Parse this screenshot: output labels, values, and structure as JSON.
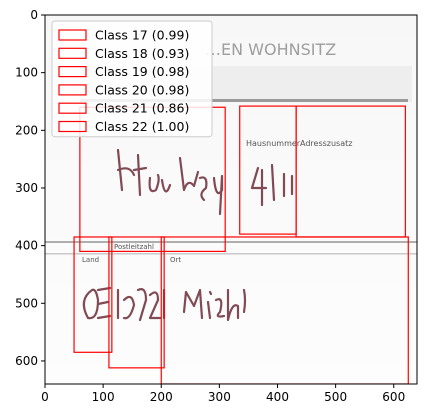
{
  "chart_data": {
    "type": "image-with-bounding-boxes",
    "title": "",
    "xlabel": "",
    "ylabel": "",
    "xlim": [
      0,
      640
    ],
    "ylim": [
      640,
      0
    ],
    "x_ticks": [
      0,
      100,
      200,
      300,
      400,
      500,
      600
    ],
    "y_ticks": [
      0,
      100,
      200,
      300,
      400,
      500,
      600
    ],
    "box_color": "#ff0000",
    "legend_position": "upper-left",
    "boxes": [
      {
        "label": "Class 17 (0.99)",
        "class": 17,
        "score": 0.99,
        "x0": 60,
        "y0": 160,
        "x1": 310,
        "y1": 410
      },
      {
        "label": "Class 18 (0.93)",
        "class": 18,
        "score": 0.93,
        "x0": 335,
        "y0": 158,
        "x1": 432,
        "y1": 380
      },
      {
        "label": "Class 19 (0.98)",
        "class": 19,
        "score": 0.98,
        "x0": 432,
        "y0": 158,
        "x1": 620,
        "y1": 385
      },
      {
        "label": "Class 20 (0.98)",
        "class": 20,
        "score": 0.98,
        "x0": 50,
        "y0": 385,
        "x1": 115,
        "y1": 585
      },
      {
        "label": "Class 21 (0.86)",
        "class": 21,
        "score": 0.86,
        "x0": 110,
        "y0": 385,
        "x1": 205,
        "y1": 612
      },
      {
        "label": "Class 22 (1.00)",
        "class": 22,
        "score": 1.0,
        "x0": 200,
        "y0": 385,
        "x1": 625,
        "y1": 640
      }
    ]
  },
  "image_text": {
    "header": "…EN WOHNSITZ",
    "hausnummer": "Hausnummer",
    "adresszusatz": "Adresszusatz",
    "land": "Land",
    "postleitzahl": "Postleitzahl",
    "ort": "Ort"
  }
}
